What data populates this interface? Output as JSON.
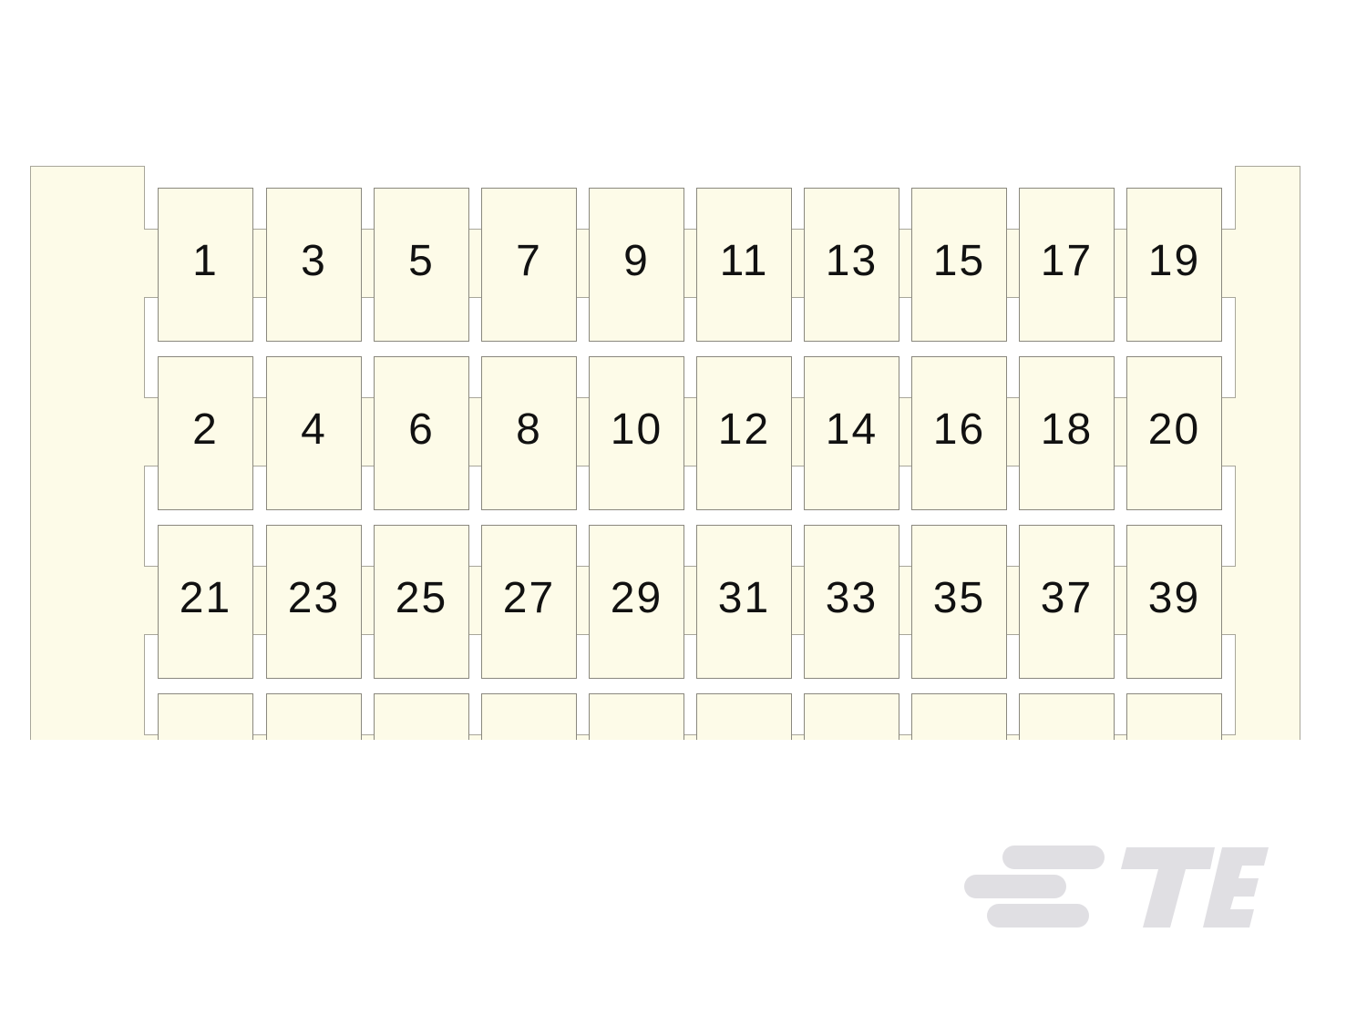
{
  "markers": {
    "rows": [
      [
        "1",
        "3",
        "5",
        "7",
        "9",
        "11",
        "13",
        "15",
        "17",
        "19"
      ],
      [
        "2",
        "4",
        "6",
        "8",
        "10",
        "12",
        "14",
        "16",
        "18",
        "20"
      ],
      [
        "21",
        "23",
        "25",
        "27",
        "29",
        "31",
        "33",
        "35",
        "37",
        "39"
      ],
      [
        "",
        "",
        "",
        "",
        "",
        "",
        "",
        "",
        "",
        ""
      ]
    ]
  },
  "colors": {
    "marker_fill": "#fdfbe8",
    "outline": "#8a887e",
    "logo": "#e0dfe3"
  },
  "logo": {
    "text": "TE"
  }
}
